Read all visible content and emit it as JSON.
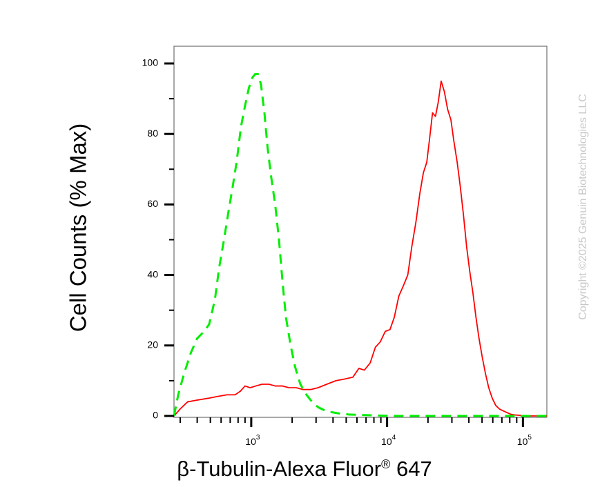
{
  "chart_data": {
    "type": "line",
    "xlabel": "β-Tubulin-Alexa Fluor® 647",
    "xlabel_main": "β-Tubulin-Alexa Fluor",
    "xlabel_reg": "®",
    "xlabel_tail": " 647",
    "ylabel": "Cell Counts (% Max)",
    "x_scale": "log",
    "xlim": [
      270,
      150000
    ],
    "ylim": [
      0,
      105
    ],
    "y_ticks": [
      0,
      20,
      40,
      60,
      80,
      100
    ],
    "y_tick_labels": [
      "0",
      "20",
      "40",
      "60",
      "80",
      "100"
    ],
    "x_ticks": [
      1000,
      10000,
      100000
    ],
    "x_tick_labels": [
      {
        "base": "10",
        "exp": "3"
      },
      {
        "base": "10",
        "exp": "4"
      },
      {
        "base": "10",
        "exp": "5"
      }
    ],
    "grid": false,
    "legend": "none",
    "series": [
      {
        "color": "#ff0000",
        "dash": "solid",
        "x": [
          270,
          300,
          340,
          400,
          480,
          560,
          660,
          760,
          830,
          900,
          980,
          1080,
          1200,
          1350,
          1500,
          1700,
          1900,
          2150,
          2400,
          2750,
          3100,
          3600,
          4200,
          4900,
          5600,
          6200,
          6800,
          7500,
          8200,
          8900,
          9700,
          10500,
          11300,
          12200,
          13200,
          14200,
          15200,
          16300,
          17400,
          18500,
          19600,
          20600,
          21600,
          22700,
          23800,
          25000,
          26400,
          27900,
          29500,
          31000,
          32800,
          34600,
          36500,
          38500,
          40600,
          42800,
          45100,
          47500,
          50000,
          53000,
          56000,
          59500,
          63000,
          67000,
          71000,
          76000,
          81000,
          87000,
          93000,
          100000,
          110000,
          120000,
          135000,
          150000
        ],
        "y": [
          0,
          2,
          4,
          4.5,
          5,
          5.5,
          6,
          6,
          7,
          8.5,
          8,
          8.5,
          9,
          9,
          8.5,
          8.5,
          8,
          8,
          7.5,
          7.5,
          8,
          9,
          10,
          10.5,
          11,
          13.5,
          13,
          15,
          19.5,
          21,
          24,
          24.5,
          28,
          34,
          37,
          40,
          48,
          55,
          63,
          69,
          72,
          79,
          86,
          85,
          89,
          95,
          92,
          87,
          84,
          78,
          72,
          65,
          57,
          48,
          41,
          35,
          28,
          22,
          17,
          12,
          8,
          5,
          3,
          2,
          1.5,
          1,
          0.5,
          0.3,
          0.2,
          0.1,
          0,
          0,
          0,
          0
        ]
      },
      {
        "color": "#00ee00",
        "dash": "dashed",
        "x": [
          270,
          290,
          320,
          360,
          400,
          450,
          490,
          540,
          580,
          630,
          680,
          730,
          780,
          840,
          900,
          960,
          1020,
          1070,
          1120,
          1180,
          1250,
          1320,
          1400,
          1500,
          1600,
          1700,
          1800,
          1950,
          2100,
          2300,
          2550,
          2800,
          3100,
          3500,
          4000,
          4600,
          5300,
          6200,
          7500,
          9000,
          11000,
          14000,
          20000,
          30000,
          50000,
          80000,
          120000,
          150000
        ],
        "y": [
          0,
          6,
          12,
          18,
          22,
          24,
          26,
          33,
          42,
          50,
          58,
          65,
          72,
          82,
          88,
          93,
          96,
          97,
          97,
          94,
          86,
          76,
          68,
          60,
          50,
          38,
          28,
          20,
          14,
          9,
          6,
          4,
          2.5,
          1.5,
          1,
          0.6,
          0.4,
          0.3,
          0.2,
          0.1,
          0,
          0,
          0,
          0,
          0,
          0,
          0,
          0
        ]
      }
    ]
  },
  "copyright": "Copyright ©2025 Genuin Biotechnologies LLC"
}
